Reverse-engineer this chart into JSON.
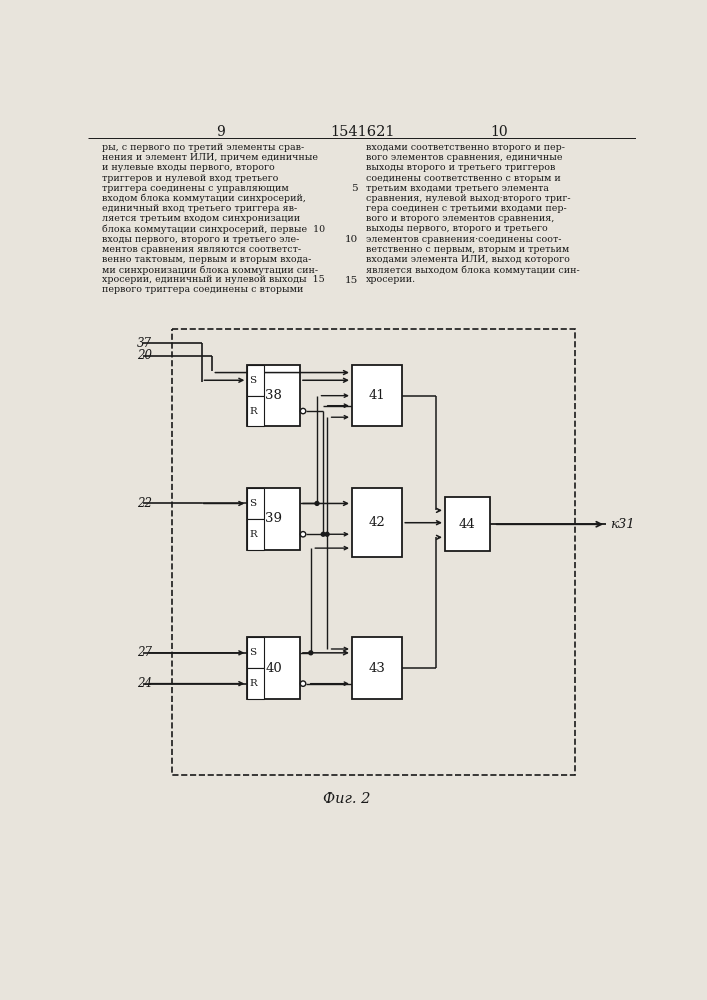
{
  "title": "1541621",
  "page_left": "9",
  "page_right": "10",
  "fig_label": "Фиг. 2",
  "output_label": "к31",
  "text_left_lines": [
    "ры, с первого по третий элементы срав-",
    "нения и элемент ИЛИ, причем единичные",
    "и нулевые входы первого, второго",
    "триггеров и нулевой вход третьего",
    "триггера соединены с управляющим",
    "входом блока коммутации синхросерий,",
    "единичный вход третьего триггера яв-",
    "ляется третьим входом синхронизации",
    "блока коммутации синхросерий, первые  10",
    "входы первого, второго и третьего эле-",
    "ментов сравнения являются соответст-",
    "венно тактовым, первым и вторым входа-",
    "ми синхронизации блока коммутации син-",
    "хросерии, единичный и нулевой выходы  15",
    "первого триггера соединены с вторыми"
  ],
  "text_right_lines": [
    "входами соответственно второго и пер-",
    "вого элементов сравнения, единичные",
    "выходы второго и третьего триггеров",
    "соединены соответственно с вторым и",
    "третьим входами третьего элемента",
    "сравнения, нулевой выход·второго триг-",
    "гера соединен с третьими входами пер-",
    "вого и второго элементов сравнения,",
    "выходы первого, второго и третьего",
    "элементов сравнения·соединены соот-",
    "ветственно с первым, вторым и третьим",
    "входами элемента ИЛИ, выход которого",
    "является выходом блока коммутации син-",
    "хросерии."
  ],
  "bg_color": "#e8e4dc",
  "lc": "#1a1a1a",
  "tc": "#1a1a1a"
}
